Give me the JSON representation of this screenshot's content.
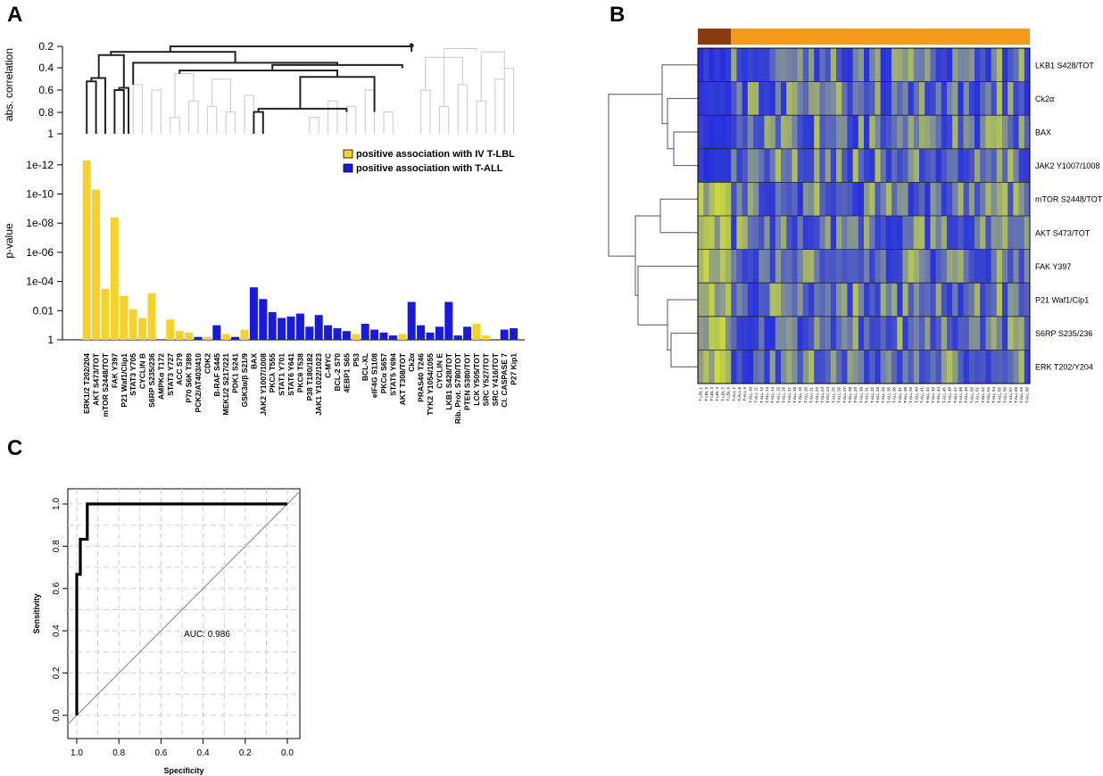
{
  "panels": {
    "a": "A",
    "b": "B",
    "c": "C"
  },
  "colors": {
    "tlbl": "#f7d12b",
    "tall": "#1a1adb",
    "heat_low": "#1a22e6",
    "heat_mid": "#6e80b4",
    "heat_high": "#d4e62a",
    "bar_dark": "#8b3a0f",
    "bar_light": "#f59a1a"
  },
  "chart_data": [
    {
      "id": "A",
      "type": "bar",
      "title": "",
      "ylabel": "p-value",
      "dendro_ylabel": "abs. correlation",
      "dendro_ticks": [
        "0.2",
        "0.4",
        "0.6",
        "0.8",
        "1"
      ],
      "ytick_labels": [
        "1e-12",
        "1e-10",
        "1e-08",
        "1e-06",
        "1e-04",
        "0.01",
        "1"
      ],
      "ylim_neg_log10": [
        0,
        12.5
      ],
      "legend": [
        {
          "label": "positive association with IV T-LBL",
          "color_key": "tlbl"
        },
        {
          "label": "positive association with T-ALL",
          "color_key": "tall"
        }
      ],
      "categories": [
        "ERK1/2 T202/204",
        "AKT S473/TOT",
        "mTOR S2448/TOT",
        "FAK Y397",
        "P21 Waf1/Clip1",
        "STAT3 Y705",
        "CYCLIN B",
        "S6RP S235/236",
        "AMPKα T172",
        "STAT3 Y727",
        "ACC S79",
        "P70 S6K T389",
        "PCK2/AT403/410",
        "CDK2",
        "B-RAF S445",
        "MEK1/2 S217/221",
        "PDK1 S241",
        "GSK3α/β S21/9",
        "BAX",
        "JAK2 Y1007/1008",
        "PKCλ T555",
        "STAT1 Y701",
        "STAT6 Y641",
        "PKCθ T538",
        "P38 T180/182",
        "JAK1 Y1022/1023",
        "C-MYC",
        "BCL-2 S70",
        "4EBP1 S65",
        "P53",
        "BCL-XL",
        "eIF4G S1108",
        "PKCα S657",
        "STAT5 Y694",
        "AKT T308/TOT",
        "Ck2α",
        "PRAS40 T246",
        "TYK2 Y1054/1055",
        "CYCLIN E",
        "LKB1 S428/TOT",
        "Rib. Prot. S780/TOT",
        "PTEN S380/TOT",
        "LCK Y505/TOT",
        "SRC Y527/TOT",
        "SRC Y416/TOT",
        "Cl. CASPASE 7",
        "P27 Kip1"
      ],
      "neg_log10_p": [
        12.3,
        10.3,
        3.5,
        8.4,
        3.0,
        2.1,
        1.5,
        3.2,
        0,
        1.4,
        0.6,
        0.5,
        0.2,
        0.2,
        1.0,
        0.4,
        0.2,
        0.7,
        3.6,
        2.8,
        1.9,
        1.5,
        1.6,
        1.8,
        0.9,
        1.7,
        1.0,
        0.8,
        0.6,
        0.4,
        1.1,
        0.7,
        0.5,
        0.3,
        0.4,
        2.6,
        1.0,
        0.5,
        0.9,
        2.6,
        0.3,
        0.9,
        1.1,
        0.3,
        0,
        0.7,
        0.8
      ],
      "group": [
        "tlbl",
        "tlbl",
        "tlbl",
        "tlbl",
        "tlbl",
        "tlbl",
        "tlbl",
        "tlbl",
        "tlbl",
        "tlbl",
        "tlbl",
        "tlbl",
        "tall",
        "tlbl",
        "tall",
        "tlbl",
        "tall",
        "tlbl",
        "tall",
        "tall",
        "tall",
        "tall",
        "tall",
        "tall",
        "tall",
        "tall",
        "tall",
        "tall",
        "tall",
        "tlbl",
        "tall",
        "tall",
        "tall",
        "tall",
        "tlbl",
        "tall",
        "tall",
        "tall",
        "tall",
        "tall",
        "tall",
        "tall",
        "tlbl",
        "tlbl",
        "tall",
        "tall",
        "tall"
      ]
    },
    {
      "id": "B",
      "type": "heatmap",
      "row_labels": [
        "LKB1 S428/TOT",
        "Ck2α",
        "BAX",
        "JAK2 Y1007/1008",
        "mTOR S2448/TOT",
        "AKT S473/TOT",
        "FAK Y397",
        "P21 Waf1/Cip1",
        "S6RP S235/236",
        "ERK T202/Y204"
      ],
      "column_labels": [
        "T-LBL 1",
        "T-LBL 2",
        "T-LBL 3",
        "T-LBL 4",
        "T-LBL 5",
        "T-LBL 6",
        "T-ALL 7",
        "T-ALL 8",
        "T-ALL 9",
        "T-ALL 10",
        "T-ALL 11",
        "T-ALL 12",
        "T-ALL 13",
        "T-ALL 14",
        "T-ALL 15",
        "T-ALL 16",
        "T-ALL 17",
        "T-ALL 18",
        "T-ALL 19",
        "T-ALL 20",
        "T-ALL 21",
        "T-ALL 22",
        "T-ALL 23",
        "T-ALL 24",
        "T-ALL 25",
        "T-ALL 26",
        "T-ALL 27",
        "T-ALL 28",
        "T-ALL 29",
        "T-ALL 30",
        "T-ALL 31",
        "T-ALL 32",
        "T-ALL 33",
        "T-ALL 34",
        "T-ALL 35",
        "T-ALL 36",
        "T-ALL 37",
        "T-ALL 38",
        "T-ALL 39",
        "T-ALL 40",
        "T-ALL 41",
        "T-ALL 42",
        "T-ALL 43",
        "T-ALL 44",
        "T-ALL 45",
        "T-ALL 46",
        "T-ALL 47",
        "T-ALL 48",
        "T-ALL 49",
        "T-ALL 50",
        "T-ALL 51",
        "T-ALL 52",
        "T-ALL 53",
        "T-ALL 54",
        "T-ALL 55",
        "T-ALL 56",
        "T-ALL 57",
        "T-ALL 58",
        "T-ALL 59",
        "T-ALL 60"
      ],
      "n_tlbl": 6
    },
    {
      "id": "C",
      "type": "line",
      "xlabel": "Specificity",
      "ylabel": "Sensitivity",
      "annotation": "AUC: 0.986",
      "xticks": [
        "1.0",
        "0.8",
        "0.6",
        "0.4",
        "0.2",
        "0.0"
      ],
      "yticks": [
        "0.0",
        "0.2",
        "0.4",
        "0.6",
        "0.8",
        "1.0"
      ],
      "xlim": [
        1.0,
        0.0
      ],
      "ylim": [
        0.0,
        1.0
      ],
      "roc_specificity": [
        1.0,
        1.0,
        0.983,
        0.983,
        0.95,
        0.95,
        0.0
      ],
      "roc_sensitivity": [
        0.0,
        0.667,
        0.667,
        0.833,
        0.833,
        1.0,
        1.0
      ]
    }
  ]
}
